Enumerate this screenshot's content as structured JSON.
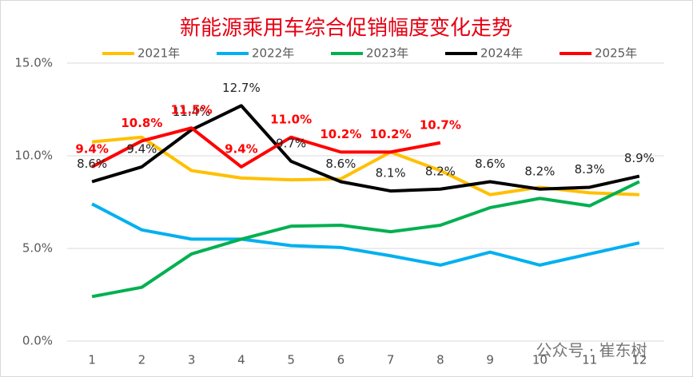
{
  "chart_data": {
    "type": "line",
    "title": "新能源乘用车综合促销幅度变化走势",
    "categories": [
      "1",
      "2",
      "3",
      "4",
      "5",
      "6",
      "7",
      "8",
      "9",
      "10",
      "11",
      "12"
    ],
    "ylim": [
      0,
      15
    ],
    "yticks": [
      {
        "value": 0,
        "label": "0.0%"
      },
      {
        "value": 5,
        "label": "5.0%"
      },
      {
        "value": 10,
        "label": "10.0%"
      },
      {
        "value": 15,
        "label": "15.0%"
      }
    ],
    "grid": true,
    "legend": "top",
    "series": [
      {
        "name": "2021年",
        "color": "#ffc000",
        "values": [
          10.75,
          11.0,
          9.2,
          8.8,
          8.7,
          8.75,
          10.2,
          9.2,
          7.9,
          8.3,
          8.0,
          7.9
        ]
      },
      {
        "name": "2022年",
        "color": "#00b0f0",
        "values": [
          7.4,
          6.0,
          5.5,
          5.5,
          5.15,
          5.05,
          4.6,
          4.1,
          4.8,
          4.1,
          4.7,
          5.3
        ]
      },
      {
        "name": "2023年",
        "color": "#00b050",
        "values": [
          2.4,
          2.9,
          4.7,
          5.5,
          6.2,
          6.25,
          5.9,
          6.25,
          7.2,
          7.7,
          7.3,
          8.6
        ]
      },
      {
        "name": "2024年",
        "color": "#000000",
        "values": [
          8.6,
          9.4,
          11.4,
          12.7,
          9.7,
          8.6,
          8.1,
          8.2,
          8.6,
          8.2,
          8.3,
          8.9
        ],
        "value_labels": [
          "8.6%",
          "9.4%",
          "11.4%",
          "12.7%",
          "9.7%",
          "8.6%",
          "8.1%",
          "8.2%",
          "8.6%",
          "8.2%",
          "8.3%",
          "8.9%"
        ]
      },
      {
        "name": "2025年",
        "color": "#ff0000",
        "values": [
          9.4,
          10.8,
          11.5,
          9.4,
          11.0,
          10.2,
          10.2,
          10.7,
          null,
          null,
          null,
          null
        ],
        "value_labels": [
          "9.4%",
          "10.8%",
          "11.5%",
          "9.4%",
          "11.0%",
          "10.2%",
          "10.2%",
          "10.7%",
          null,
          null,
          null,
          null
        ]
      }
    ],
    "watermark": "公众号 · 崔东树"
  }
}
